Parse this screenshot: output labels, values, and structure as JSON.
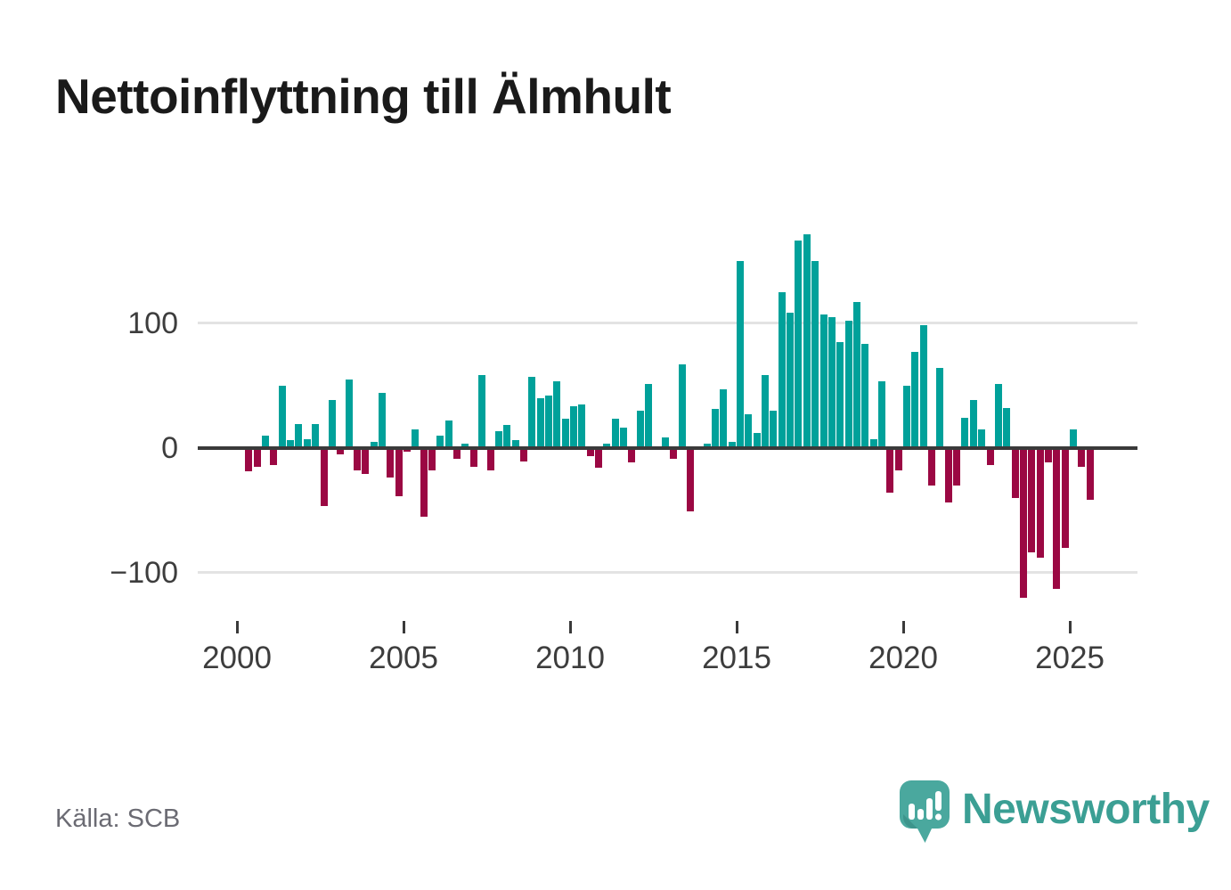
{
  "title": "Nettoinflyttning till Älmhult",
  "source": "Källa: SCB",
  "branding": {
    "wordmark": "Newsworthy",
    "icon": "newsworthy-speech-bubble-bar-chart-icon",
    "wordmark_color": "#3b9f94",
    "bubble_color": "#4aa89e",
    "bubble_shade_color": "#3d948b"
  },
  "chart_data": {
    "type": "bar",
    "title": "Nettoinflyttning till Älmhult",
    "frequency": "quarterly",
    "start_period": "2000 Q2",
    "end_period": "2025 Q3",
    "values": [
      -19,
      -15,
      10,
      -14,
      50,
      6,
      19,
      7,
      19,
      -47,
      38,
      -5,
      55,
      -18,
      -21,
      5,
      44,
      -24,
      -39,
      -3,
      15,
      -55,
      -18,
      10,
      22,
      -9,
      3,
      -15,
      58,
      -18,
      13,
      18,
      6,
      -11,
      57,
      40,
      42,
      53,
      23,
      33,
      35,
      -7,
      -16,
      3,
      23,
      16,
      -12,
      30,
      51,
      0,
      8,
      -9,
      67,
      -51,
      0,
      3,
      31,
      47,
      5,
      150,
      27,
      12,
      58,
      30,
      125,
      108,
      166,
      171,
      150,
      107,
      105,
      85,
      102,
      117,
      83,
      7,
      53,
      -36,
      -18,
      50,
      77,
      98,
      -30,
      64,
      -44,
      -30,
      24,
      38,
      15,
      -14,
      51,
      32,
      -40,
      -120,
      -84,
      -88,
      -12,
      -113,
      -80,
      15,
      -15,
      -42
    ],
    "positive_color": "#00a19a",
    "negative_color": "#9b0843",
    "y_ticks": [
      {
        "label": "100",
        "value": 100
      },
      {
        "label": "0",
        "value": 0
      },
      {
        "label": "−100",
        "value": -100
      }
    ],
    "x_ticks": [
      {
        "label": "2000",
        "year": 2000
      },
      {
        "label": "2005",
        "year": 2005
      },
      {
        "label": "2010",
        "year": 2010
      },
      {
        "label": "2015",
        "year": 2015
      },
      {
        "label": "2020",
        "year": 2020
      },
      {
        "label": "2025",
        "year": 2025
      }
    ],
    "ylim": [
      -135,
      190
    ],
    "grid": "horizontal",
    "legend": "none"
  }
}
